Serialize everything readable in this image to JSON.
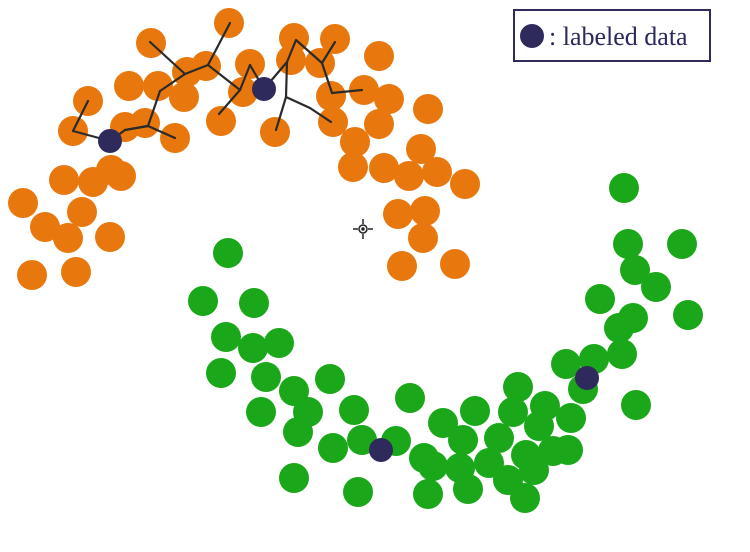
{
  "chart_data": {
    "type": "scatter",
    "title": "",
    "xlabel": "",
    "ylabel": "",
    "grid": false,
    "legend_placement": "top-right",
    "legend": {
      "label": ": labeled data",
      "marker_color": "#2e2a5c"
    },
    "colors": {
      "orange": "#e8780e",
      "green": "#1aa81a",
      "labeled": "#2e2a5c",
      "edge": "#2a2a2a",
      "legend_border": "#2e2a5c"
    },
    "series": [
      {
        "color": "orange",
        "points": [
          [
            229,
            23
          ],
          [
            151,
            43
          ],
          [
            294,
            38
          ],
          [
            335,
            39
          ],
          [
            187,
            72
          ],
          [
            206,
            66
          ],
          [
            250,
            64
          ],
          [
            291,
            60
          ],
          [
            320,
            63
          ],
          [
            379,
            56
          ],
          [
            129,
            86
          ],
          [
            158,
            86
          ],
          [
            184,
            97
          ],
          [
            243,
            92
          ],
          [
            331,
            96
          ],
          [
            364,
            90
          ],
          [
            389,
            99
          ],
          [
            88,
            101
          ],
          [
            73,
            131
          ],
          [
            125,
            127
          ],
          [
            145,
            123
          ],
          [
            175,
            138
          ],
          [
            221,
            121
          ],
          [
            275,
            132
          ],
          [
            333,
            122
          ],
          [
            379,
            124
          ],
          [
            428,
            109
          ],
          [
            355,
            142
          ],
          [
            421,
            149
          ],
          [
            111,
            170
          ],
          [
            121,
            176
          ],
          [
            64,
            180
          ],
          [
            93,
            182
          ],
          [
            353,
            167
          ],
          [
            384,
            168
          ],
          [
            409,
            176
          ],
          [
            437,
            172
          ],
          [
            465,
            184
          ],
          [
            23,
            203
          ],
          [
            82,
            212
          ],
          [
            45,
            227
          ],
          [
            68,
            238
          ],
          [
            110,
            237
          ],
          [
            398,
            214
          ],
          [
            425,
            211
          ],
          [
            423,
            238
          ],
          [
            32,
            275
          ],
          [
            76,
            272
          ],
          [
            402,
            266
          ],
          [
            455,
            264
          ]
        ]
      },
      {
        "color": "green",
        "points": [
          [
            624,
            188
          ],
          [
            228,
            253
          ],
          [
            628,
            244
          ],
          [
            682,
            244
          ],
          [
            635,
            270
          ],
          [
            656,
            287
          ],
          [
            203,
            301
          ],
          [
            254,
            303
          ],
          [
            600,
            299
          ],
          [
            688,
            315
          ],
          [
            633,
            318
          ],
          [
            619,
            328
          ],
          [
            226,
            337
          ],
          [
            253,
            348
          ],
          [
            279,
            343
          ],
          [
            622,
            354
          ],
          [
            566,
            364
          ],
          [
            594,
            359
          ],
          [
            221,
            373
          ],
          [
            266,
            377
          ],
          [
            330,
            379
          ],
          [
            583,
            389
          ],
          [
            294,
            391
          ],
          [
            308,
            412
          ],
          [
            518,
            387
          ],
          [
            410,
            398
          ],
          [
            261,
            412
          ],
          [
            354,
            410
          ],
          [
            545,
            406
          ],
          [
            475,
            411
          ],
          [
            513,
            412
          ],
          [
            571,
            418
          ],
          [
            636,
            405
          ],
          [
            298,
            432
          ],
          [
            443,
            423
          ],
          [
            539,
            426
          ],
          [
            333,
            448
          ],
          [
            362,
            440
          ],
          [
            396,
            441
          ],
          [
            463,
            440
          ],
          [
            499,
            438
          ],
          [
            526,
            455
          ],
          [
            553,
            451
          ],
          [
            568,
            450
          ],
          [
            424,
            458
          ],
          [
            433,
            466
          ],
          [
            460,
            468
          ],
          [
            489,
            463
          ],
          [
            534,
            470
          ],
          [
            508,
            480
          ],
          [
            294,
            478
          ],
          [
            358,
            492
          ],
          [
            428,
            494
          ],
          [
            468,
            489
          ],
          [
            525,
            498
          ]
        ]
      }
    ],
    "labeled_points": [
      [
        110,
        141
      ],
      [
        264,
        89
      ],
      [
        381,
        450
      ],
      [
        587,
        378
      ]
    ],
    "graph_edges": [
      [
        [
          110,
          141
        ],
        [
          125,
          130
        ]
      ],
      [
        [
          110,
          141
        ],
        [
          73,
          131
        ]
      ],
      [
        [
          73,
          131
        ],
        [
          88,
          101
        ]
      ],
      [
        [
          125,
          130
        ],
        [
          148,
          126
        ]
      ],
      [
        [
          148,
          126
        ],
        [
          175,
          138
        ]
      ],
      [
        [
          148,
          126
        ],
        [
          160,
          91
        ]
      ],
      [
        [
          160,
          91
        ],
        [
          185,
          74
        ]
      ],
      [
        [
          185,
          74
        ],
        [
          150,
          42
        ]
      ],
      [
        [
          185,
          74
        ],
        [
          208,
          65
        ]
      ],
      [
        [
          208,
          65
        ],
        [
          230,
          23
        ]
      ],
      [
        [
          208,
          65
        ],
        [
          240,
          90
        ]
      ],
      [
        [
          240,
          90
        ],
        [
          219,
          114
        ]
      ],
      [
        [
          240,
          90
        ],
        [
          250,
          65
        ]
      ],
      [
        [
          250,
          65
        ],
        [
          264,
          89
        ]
      ],
      [
        [
          264,
          89
        ],
        [
          287,
          62
        ]
      ],
      [
        [
          287,
          62
        ],
        [
          296,
          40
        ]
      ],
      [
        [
          296,
          40
        ],
        [
          322,
          63
        ]
      ],
      [
        [
          322,
          63
        ],
        [
          335,
          42
        ]
      ],
      [
        [
          322,
          63
        ],
        [
          332,
          93
        ]
      ],
      [
        [
          332,
          93
        ],
        [
          362,
          90
        ]
      ],
      [
        [
          287,
          62
        ],
        [
          286,
          97
        ]
      ],
      [
        [
          286,
          97
        ],
        [
          276,
          130
        ]
      ],
      [
        [
          286,
          97
        ],
        [
          310,
          108
        ]
      ],
      [
        [
          310,
          108
        ],
        [
          331,
          122
        ]
      ],
      [
        [
          148,
          126
        ],
        [
          125,
          130
        ]
      ]
    ]
  }
}
